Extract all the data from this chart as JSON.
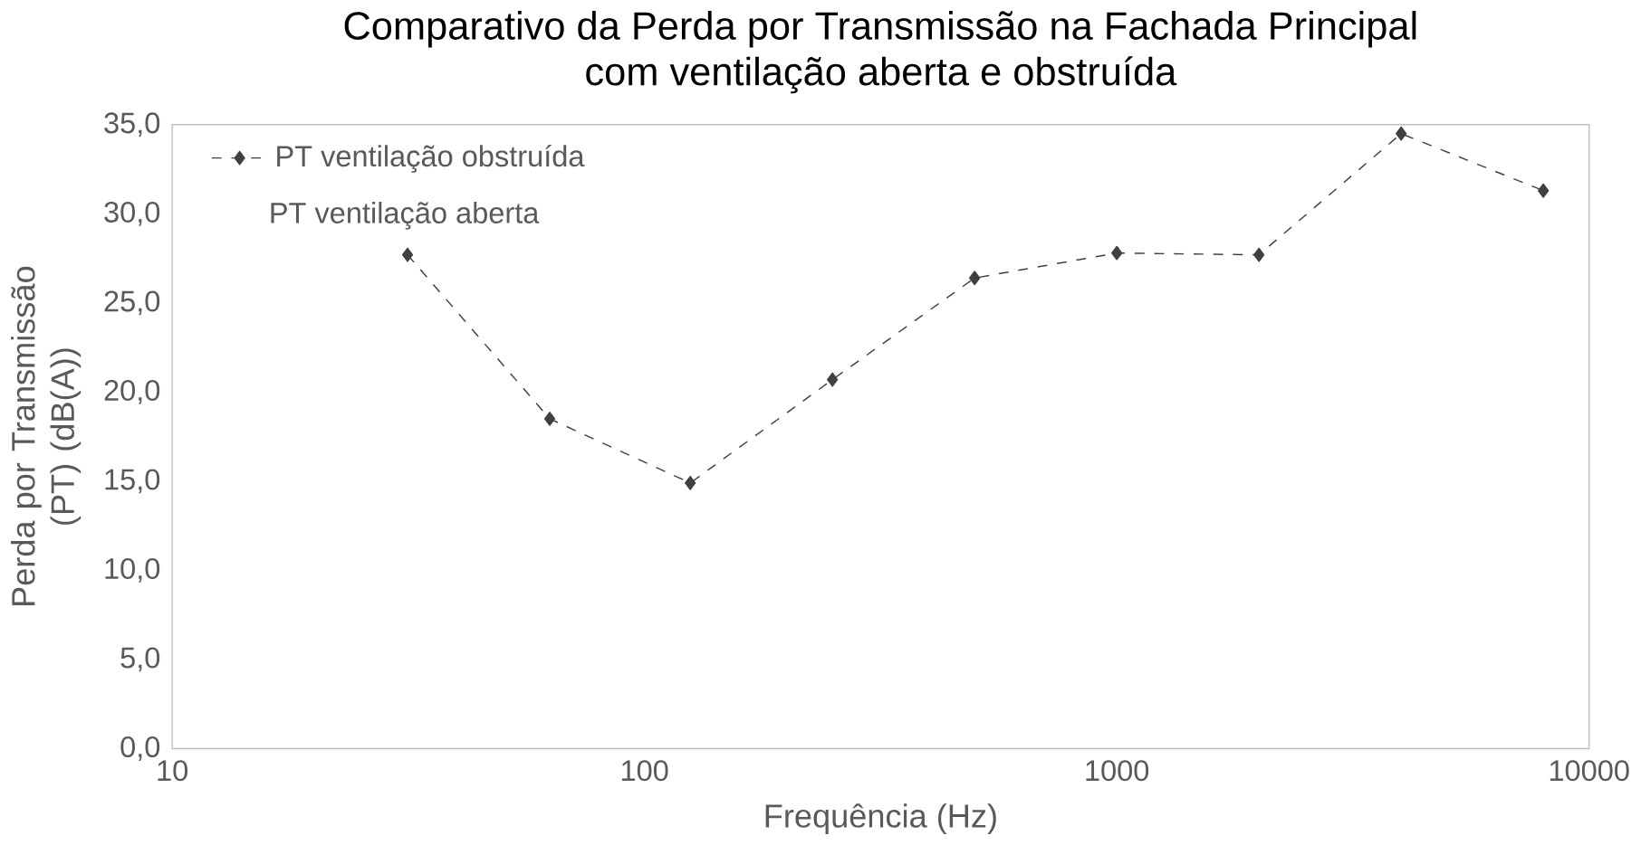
{
  "chart_data": {
    "type": "line",
    "title": "Comparativo da Perda por Transmissão na Fachada Principal",
    "subtitle": "com ventilação aberta e obstruída",
    "xlabel": "Frequência (Hz)",
    "ylabel": "Perda por Transmissão (PT) (dB(A))",
    "log": "x",
    "x": [
      31.5,
      63,
      125,
      250,
      500,
      1000,
      2000,
      4000,
      8000
    ],
    "series": [
      {
        "name": "PT ventilação obstruída",
        "color": "#404040",
        "values": [
          27.7,
          18.5,
          14.9,
          20.7,
          26.4,
          27.8,
          27.7,
          34.5,
          31.3
        ]
      }
    ],
    "annotations": [
      "PT ventilação aberta"
    ],
    "xlim": [
      10,
      10000
    ],
    "xticks": [
      10,
      100,
      1000,
      10000
    ],
    "ylim": [
      0,
      35
    ],
    "yticks": [
      {
        "value": 0,
        "label": "0,0"
      },
      {
        "value": 5,
        "label": "5,0"
      },
      {
        "value": 10,
        "label": "10,0"
      },
      {
        "value": 15,
        "label": "15,0"
      },
      {
        "value": 20,
        "label": "20,0"
      },
      {
        "value": 25,
        "label": "25,0"
      },
      {
        "value": 30,
        "label": "30,0"
      },
      {
        "value": 35,
        "label": "35,0"
      }
    ],
    "legend": "top left",
    "marker": "diamond",
    "line_style": "dashed"
  }
}
